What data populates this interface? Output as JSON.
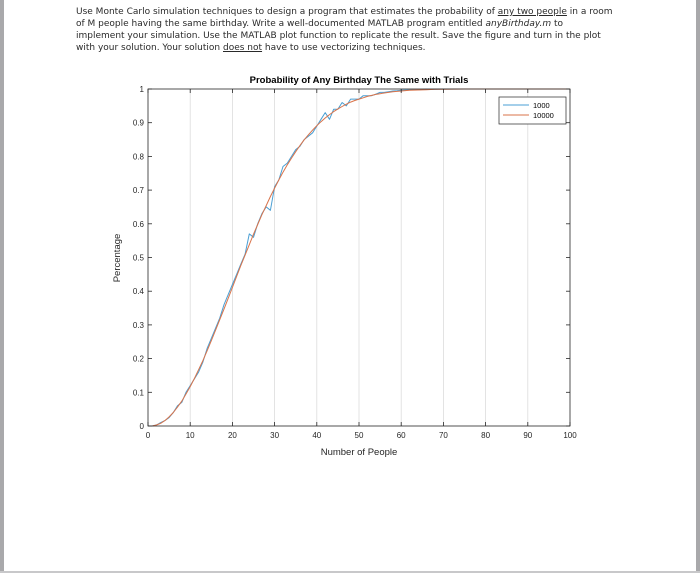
{
  "problem": {
    "line1_pre": "Use Monte Carlo simulation techniques to design a program that estimates the probability of ",
    "line1_u": "any two people",
    "line1_post": " in a room",
    "line2_pre": "of M people having the same birthday.  Write a well-documented MATLAB program entitled ",
    "line2_i": "anyBirthday.m",
    "line2_post": " to",
    "line3": "implement your simulation.  Use the MATLAB plot function to replicate the result.  Save the figure and turn in the plot",
    "line4_pre": "with your solution.  Your solution ",
    "line4_u": "does not",
    "line4_post": " have to use vectorizing techniques."
  },
  "chart_data": {
    "type": "line",
    "title": "Probability of Any Birthday The Same with Trials",
    "xlabel": "Number of People",
    "ylabel": "Percentage",
    "xlim": [
      0,
      100
    ],
    "ylim": [
      0,
      1
    ],
    "xticks": [
      0,
      10,
      20,
      30,
      40,
      50,
      60,
      70,
      80,
      90,
      100
    ],
    "yticks": [
      0,
      0.1,
      0.2,
      0.3,
      0.4,
      0.5,
      0.6,
      0.7,
      0.8,
      0.9,
      1
    ],
    "xtick_labels": [
      "0",
      "10",
      "20",
      "30",
      "40",
      "50",
      "60",
      "70",
      "80",
      "90",
      "100"
    ],
    "ytick_labels": [
      "0",
      "0.1",
      "0.2",
      "0.3",
      "0.4",
      "0.5",
      "0.6",
      "0.7",
      "0.8",
      "0.9",
      "1"
    ],
    "grid": "vertical",
    "legend_position": "top-right",
    "series": [
      {
        "name": "1000",
        "color": "#4a9fd4",
        "x": [
          1,
          2,
          3,
          4,
          5,
          6,
          7,
          8,
          9,
          10,
          11,
          12,
          13,
          14,
          15,
          16,
          17,
          18,
          19,
          20,
          21,
          22,
          23,
          24,
          25,
          26,
          27,
          28,
          29,
          30,
          31,
          32,
          33,
          34,
          35,
          36,
          37,
          38,
          39,
          40,
          41,
          42,
          43,
          44,
          45,
          46,
          47,
          48,
          49,
          50,
          51,
          52,
          53,
          54,
          55,
          56,
          57,
          58,
          59,
          60,
          62,
          64,
          66,
          68,
          70,
          75,
          80,
          85,
          90,
          95,
          100
        ],
        "y": [
          0.0,
          0.003,
          0.01,
          0.016,
          0.025,
          0.04,
          0.06,
          0.07,
          0.1,
          0.12,
          0.14,
          0.16,
          0.19,
          0.23,
          0.26,
          0.29,
          0.32,
          0.36,
          0.39,
          0.42,
          0.45,
          0.48,
          0.51,
          0.57,
          0.56,
          0.6,
          0.63,
          0.65,
          0.64,
          0.71,
          0.73,
          0.77,
          0.78,
          0.8,
          0.82,
          0.83,
          0.85,
          0.86,
          0.87,
          0.89,
          0.91,
          0.93,
          0.91,
          0.94,
          0.94,
          0.96,
          0.95,
          0.97,
          0.97,
          0.97,
          0.98,
          0.98,
          0.98,
          0.985,
          0.99,
          0.99,
          0.992,
          0.994,
          0.995,
          0.996,
          0.997,
          0.998,
          0.999,
          0.999,
          1.0,
          1.0,
          1.0,
          1.0,
          1.0,
          1.0,
          1.0
        ]
      },
      {
        "name": "10000",
        "color": "#d9734a",
        "x": [
          1,
          2,
          3,
          4,
          5,
          6,
          7,
          8,
          9,
          10,
          11,
          12,
          13,
          14,
          15,
          16,
          17,
          18,
          19,
          20,
          21,
          22,
          23,
          24,
          25,
          26,
          27,
          28,
          29,
          30,
          31,
          32,
          33,
          34,
          35,
          36,
          37,
          38,
          39,
          40,
          41,
          42,
          43,
          44,
          45,
          46,
          47,
          48,
          49,
          50,
          51,
          52,
          53,
          54,
          55,
          56,
          57,
          58,
          59,
          60,
          62,
          64,
          66,
          68,
          70,
          75,
          80,
          85,
          90,
          95,
          100
        ],
        "y": [
          0.0,
          0.003,
          0.008,
          0.016,
          0.027,
          0.04,
          0.056,
          0.074,
          0.095,
          0.117,
          0.141,
          0.167,
          0.194,
          0.223,
          0.253,
          0.284,
          0.315,
          0.347,
          0.379,
          0.411,
          0.444,
          0.476,
          0.507,
          0.538,
          0.569,
          0.598,
          0.627,
          0.654,
          0.681,
          0.706,
          0.73,
          0.753,
          0.775,
          0.795,
          0.814,
          0.832,
          0.849,
          0.864,
          0.878,
          0.891,
          0.903,
          0.914,
          0.924,
          0.933,
          0.941,
          0.948,
          0.955,
          0.961,
          0.966,
          0.97,
          0.974,
          0.978,
          0.981,
          0.984,
          0.986,
          0.988,
          0.99,
          0.992,
          0.993,
          0.994,
          0.996,
          0.997,
          0.998,
          0.999,
          0.999,
          1.0,
          1.0,
          1.0,
          1.0,
          1.0,
          1.0
        ]
      }
    ]
  }
}
